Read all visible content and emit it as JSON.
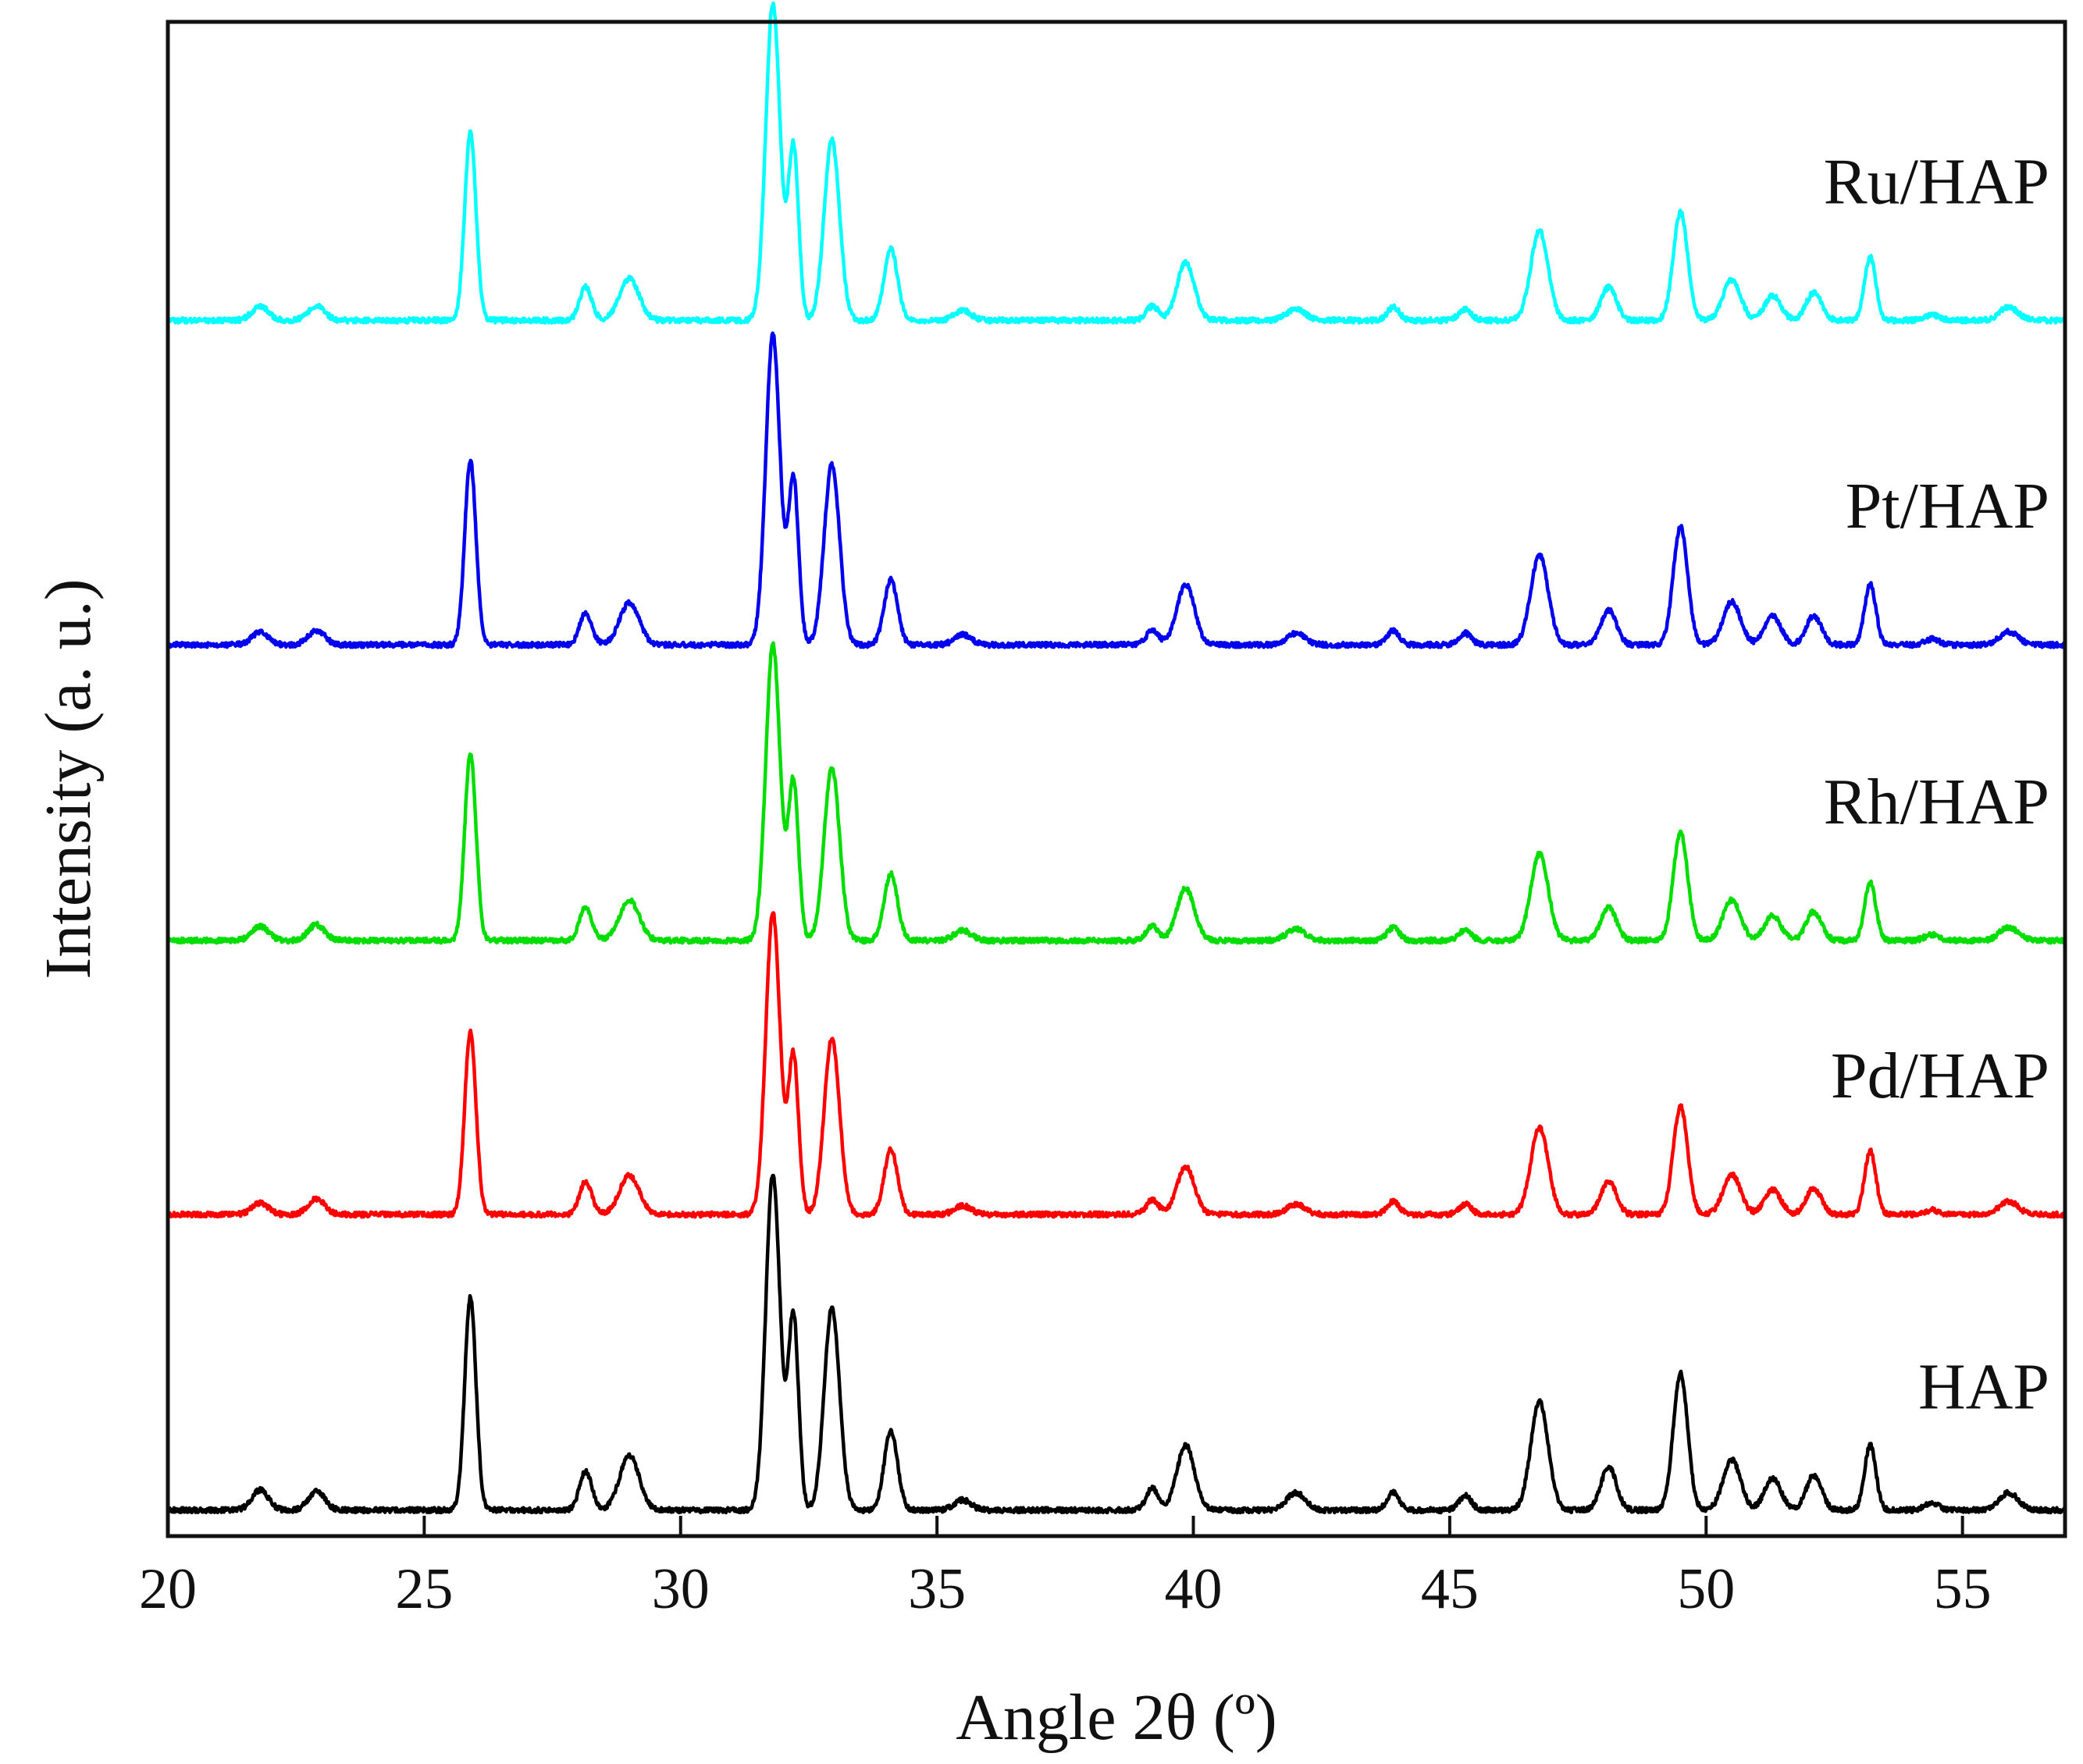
{
  "chart_data": {
    "type": "line",
    "title": "",
    "xlabel": "Angle 2θ (º)",
    "ylabel": "Intensity (a. u.)",
    "xlim": [
      20,
      57
    ],
    "ylim": [
      0,
      10.5
    ],
    "grid": false,
    "legend": "none (labels at right end of each trace)",
    "xticks": [
      {
        "value": 20,
        "label": "20"
      },
      {
        "value": 25,
        "label": "25"
      },
      {
        "value": 30,
        "label": "30"
      },
      {
        "value": 35,
        "label": "35"
      },
      {
        "value": 40,
        "label": "40"
      },
      {
        "value": 45,
        "label": "45"
      },
      {
        "value": 50,
        "label": "50"
      },
      {
        "value": 55,
        "label": "55"
      }
    ],
    "peaks": [
      {
        "position": 21.8,
        "width": 0.16
      },
      {
        "position": 22.9,
        "width": 0.16
      },
      {
        "position": 25.9,
        "width": 0.11
      },
      {
        "position": 28.15,
        "width": 0.12
      },
      {
        "position": 29.0,
        "width": 0.19
      },
      {
        "position": 31.8,
        "width": 0.14
      },
      {
        "position": 32.2,
        "width": 0.1
      },
      {
        "position": 32.95,
        "width": 0.15
      },
      {
        "position": 34.1,
        "width": 0.13
      },
      {
        "position": 35.5,
        "width": 0.16
      },
      {
        "position": 39.2,
        "width": 0.12
      },
      {
        "position": 39.85,
        "width": 0.17
      },
      {
        "position": 42.0,
        "width": 0.18
      },
      {
        "position": 43.9,
        "width": 0.12
      },
      {
        "position": 45.3,
        "width": 0.12
      },
      {
        "position": 46.75,
        "width": 0.17
      },
      {
        "position": 48.1,
        "width": 0.15
      },
      {
        "position": 49.5,
        "width": 0.14
      },
      {
        "position": 50.5,
        "width": 0.17
      },
      {
        "position": 51.3,
        "width": 0.16
      },
      {
        "position": 52.1,
        "width": 0.15
      },
      {
        "position": 53.2,
        "width": 0.11
      },
      {
        "position": 54.4,
        "width": 0.14
      },
      {
        "position": 55.9,
        "width": 0.18
      }
    ],
    "series": [
      {
        "name": "HAP",
        "color": "#000000",
        "offset": 0.0,
        "intensities": [
          0.14,
          0.13,
          1.48,
          0.27,
          0.38,
          2.33,
          1.35,
          1.4,
          0.55,
          0.07,
          0.15,
          0.45,
          0.12,
          0.12,
          0.1,
          0.75,
          0.3,
          0.95,
          0.35,
          0.22,
          0.24,
          0.45,
          0.05,
          0.12
        ]
      },
      {
        "name": "Pd/HAP",
        "color": "#ff0000",
        "offset": 2.05,
        "intensities": [
          0.08,
          0.11,
          1.27,
          0.23,
          0.27,
          2.09,
          1.1,
          1.22,
          0.45,
          0.06,
          0.1,
          0.33,
          0.07,
          0.09,
          0.07,
          0.6,
          0.23,
          0.75,
          0.28,
          0.17,
          0.18,
          0.44,
          0.03,
          0.09
        ]
      },
      {
        "name": "Rh/HAP",
        "color": "#00dd00",
        "offset": 3.95,
        "intensities": [
          0.1,
          0.11,
          1.3,
          0.23,
          0.28,
          2.05,
          1.1,
          1.2,
          0.46,
          0.07,
          0.1,
          0.36,
          0.08,
          0.09,
          0.07,
          0.6,
          0.23,
          0.75,
          0.28,
          0.17,
          0.2,
          0.4,
          0.04,
          0.09
        ]
      },
      {
        "name": "Pt/HAP",
        "color": "#0000ee",
        "offset": 6.0,
        "intensities": [
          0.09,
          0.1,
          1.28,
          0.22,
          0.29,
          2.15,
          1.15,
          1.25,
          0.45,
          0.07,
          0.1,
          0.42,
          0.08,
          0.1,
          0.08,
          0.62,
          0.24,
          0.82,
          0.3,
          0.2,
          0.2,
          0.42,
          0.04,
          0.09
        ]
      },
      {
        "name": "Ru/HAP",
        "color": "#00ffff",
        "offset": 8.25,
        "intensities": [
          0.1,
          0.1,
          1.3,
          0.23,
          0.29,
          2.2,
          1.2,
          1.25,
          0.5,
          0.07,
          0.1,
          0.4,
          0.08,
          0.09,
          0.08,
          0.62,
          0.23,
          0.75,
          0.28,
          0.17,
          0.19,
          0.44,
          0.04,
          0.09
        ]
      }
    ]
  }
}
